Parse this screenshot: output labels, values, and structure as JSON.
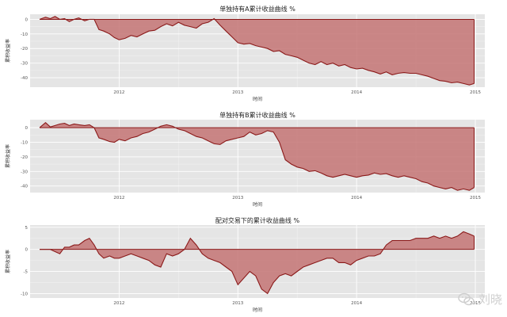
{
  "chart_data": [
    {
      "type": "area",
      "title": "单独持有A累计收益曲线 %",
      "xlabel": "时间",
      "ylabel": "累积收益率",
      "x_ticks": [
        "2012",
        "2013",
        "2014",
        "2015"
      ],
      "x_tick_values": [
        2012,
        2013,
        2014,
        2015
      ],
      "y_ticks": [
        0,
        -10,
        -20,
        -30,
        -40
      ],
      "xlim": [
        2011.25,
        2015.08
      ],
      "ylim": [
        -46.5,
        3.5
      ],
      "grid": true,
      "series": [
        {
          "x": [
            2011.33,
            2011.38,
            2011.42,
            2011.46,
            2011.5,
            2011.54,
            2011.58,
            2011.62,
            2011.66,
            2011.71,
            2011.75,
            2011.79,
            2011.83,
            2011.87,
            2011.92,
            2011.96,
            2012.0,
            2012.05,
            2012.1,
            2012.15,
            2012.2,
            2012.25,
            2012.3,
            2012.35,
            2012.4,
            2012.45,
            2012.5,
            2012.55,
            2012.6,
            2012.65,
            2012.7,
            2012.75,
            2012.8,
            2012.85,
            2012.9,
            2012.95,
            2013.0,
            2013.05,
            2013.1,
            2013.15,
            2013.2,
            2013.25,
            2013.3,
            2013.35,
            2013.4,
            2013.45,
            2013.5,
            2013.55,
            2013.6,
            2013.65,
            2013.7,
            2013.75,
            2013.8,
            2013.85,
            2013.9,
            2013.95,
            2014.0,
            2014.05,
            2014.1,
            2014.15,
            2014.2,
            2014.25,
            2014.3,
            2014.35,
            2014.4,
            2014.45,
            2014.5,
            2014.55,
            2014.6,
            2014.65,
            2014.7,
            2014.75,
            2014.8,
            2014.85,
            2014.9,
            2014.95,
            2014.99
          ],
          "y": [
            0,
            1.5,
            0.5,
            2,
            0,
            0.5,
            -1.5,
            0,
            1,
            -1,
            0,
            0,
            -7,
            -8,
            -10,
            -12.5,
            -14,
            -13,
            -11,
            -12,
            -10,
            -8,
            -7.5,
            -5,
            -3,
            -4.5,
            -2,
            -4,
            -5,
            -6,
            -3,
            -2,
            0.5,
            -4,
            -8,
            -12,
            -16,
            -17,
            -16.5,
            -18,
            -19,
            -20,
            -22,
            -21.5,
            -24,
            -25,
            -26,
            -28,
            -30,
            -31,
            -29,
            -31,
            -30,
            -32,
            -31,
            -33,
            -34,
            -33.5,
            -35,
            -36,
            -37.5,
            -36,
            -38,
            -37,
            -36.5,
            -37,
            -37,
            -38,
            -39,
            -40.5,
            -42,
            -42.5,
            -43.5,
            -43,
            -44,
            -45,
            -44
          ]
        }
      ]
    },
    {
      "type": "area",
      "title": "单独持有B累计收益曲线 %",
      "xlabel": "时间",
      "ylabel": "累积收益率",
      "x_ticks": [
        "2012",
        "2013",
        "2014",
        "2015"
      ],
      "x_tick_values": [
        2012,
        2013,
        2014,
        2015
      ],
      "y_ticks": [
        0,
        -10,
        -20,
        -30,
        -40
      ],
      "xlim": [
        2011.25,
        2015.08
      ],
      "ylim": [
        -44.5,
        5.5
      ],
      "grid": true,
      "series": [
        {
          "x": [
            2011.33,
            2011.38,
            2011.42,
            2011.46,
            2011.5,
            2011.54,
            2011.58,
            2011.62,
            2011.66,
            2011.71,
            2011.75,
            2011.79,
            2011.83,
            2011.87,
            2011.92,
            2011.96,
            2012.0,
            2012.05,
            2012.1,
            2012.15,
            2012.2,
            2012.25,
            2012.3,
            2012.35,
            2012.4,
            2012.45,
            2012.5,
            2012.55,
            2012.6,
            2012.65,
            2012.7,
            2012.75,
            2012.8,
            2012.85,
            2012.9,
            2012.95,
            2013.0,
            2013.05,
            2013.1,
            2013.15,
            2013.2,
            2013.25,
            2013.3,
            2013.35,
            2013.4,
            2013.45,
            2013.5,
            2013.55,
            2013.6,
            2013.65,
            2013.7,
            2013.75,
            2013.8,
            2013.85,
            2013.9,
            2013.95,
            2014.0,
            2014.05,
            2014.1,
            2014.15,
            2014.2,
            2014.25,
            2014.3,
            2014.35,
            2014.4,
            2014.45,
            2014.5,
            2014.55,
            2014.6,
            2014.65,
            2014.7,
            2014.75,
            2014.8,
            2014.85,
            2014.9,
            2014.95,
            2014.99
          ],
          "y": [
            0,
            3.5,
            0.5,
            1.5,
            2.5,
            3,
            1.5,
            2.5,
            2,
            1.5,
            2,
            0,
            -7,
            -8,
            -9.5,
            -10,
            -8,
            -9,
            -7,
            -6,
            -4,
            -3,
            -1,
            1,
            2,
            1,
            -1,
            -2,
            -4,
            -6,
            -7,
            -9,
            -11,
            -11.5,
            -9,
            -8,
            -7,
            -6,
            -3,
            -5,
            -4,
            -2,
            -3,
            -10,
            -22,
            -25,
            -27,
            -28,
            -30,
            -29.5,
            -31,
            -33,
            -34,
            -33,
            -32,
            -33,
            -34,
            -33,
            -32.5,
            -31,
            -32,
            -31.5,
            -33,
            -34,
            -33,
            -34,
            -35,
            -37,
            -38,
            -40,
            -41,
            -42,
            -41,
            -43,
            -42,
            -43,
            -41
          ]
        }
      ]
    },
    {
      "type": "area",
      "title": "配对交易下的累计收益曲线 %",
      "xlabel": "时间",
      "ylabel": "累积收益率",
      "x_ticks": [
        "2012",
        "2013",
        "2014",
        "2015"
      ],
      "x_tick_values": [
        2012,
        2013,
        2014,
        2015
      ],
      "y_ticks": [
        5,
        0,
        -5,
        -10
      ],
      "xlim": [
        2011.25,
        2015.08
      ],
      "ylim": [
        -11,
        5.5
      ],
      "grid": true,
      "series": [
        {
          "x": [
            2011.33,
            2011.38,
            2011.42,
            2011.46,
            2011.5,
            2011.54,
            2011.58,
            2011.62,
            2011.66,
            2011.71,
            2011.75,
            2011.79,
            2011.83,
            2011.87,
            2011.92,
            2011.96,
            2012.0,
            2012.05,
            2012.1,
            2012.15,
            2012.2,
            2012.25,
            2012.3,
            2012.35,
            2012.4,
            2012.45,
            2012.5,
            2012.55,
            2012.6,
            2012.65,
            2012.7,
            2012.75,
            2012.8,
            2012.85,
            2012.9,
            2012.95,
            2013.0,
            2013.05,
            2013.1,
            2013.15,
            2013.2,
            2013.25,
            2013.3,
            2013.35,
            2013.4,
            2013.45,
            2013.5,
            2013.55,
            2013.6,
            2013.65,
            2013.7,
            2013.75,
            2013.8,
            2013.85,
            2013.9,
            2013.95,
            2014.0,
            2014.05,
            2014.1,
            2014.15,
            2014.2,
            2014.25,
            2014.3,
            2014.35,
            2014.4,
            2014.45,
            2014.5,
            2014.55,
            2014.6,
            2014.65,
            2014.7,
            2014.75,
            2014.8,
            2014.85,
            2014.9,
            2014.95,
            2014.99
          ],
          "y": [
            0,
            0,
            0,
            -0.5,
            -1,
            0.5,
            0.5,
            1,
            1,
            2,
            2.5,
            1,
            -1,
            -2,
            -1.5,
            -2,
            -2,
            -1.5,
            -1,
            -1.5,
            -2,
            -2.5,
            -3.5,
            -4,
            -1,
            -1.5,
            -1,
            0,
            2.5,
            1,
            -1,
            -2,
            -2.5,
            -3,
            -4,
            -5,
            -8,
            -6.5,
            -5,
            -6,
            -9,
            -10,
            -7.5,
            -6,
            -5.5,
            -6,
            -5,
            -4,
            -3.5,
            -3,
            -2.5,
            -2,
            -2,
            -3,
            -3,
            -3.5,
            -2.5,
            -2,
            -1.5,
            -1.5,
            -1,
            1,
            2,
            2,
            2,
            2,
            2.5,
            2.5,
            2.5,
            3,
            2.5,
            3,
            2.5,
            3,
            4,
            3.5,
            3
          ]
        }
      ]
    }
  ],
  "watermark": {
    "text": "刘晓",
    "icon": "wechat-icon"
  }
}
